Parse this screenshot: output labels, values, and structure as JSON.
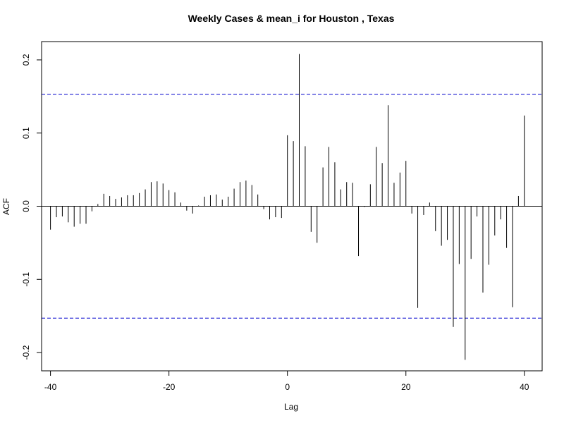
{
  "chart_data": {
    "type": "bar",
    "title": "Weekly Cases & mean_i for Houston , Texas",
    "xlabel": "Lag",
    "ylabel": "ACF",
    "xlim": [
      -41.5,
      43
    ],
    "ylim": [
      -0.225,
      0.225
    ],
    "x_ticks": [
      -40,
      -20,
      0,
      20,
      40
    ],
    "x_tick_labels": [
      "-40",
      "-20",
      "0",
      "20",
      "40"
    ],
    "y_ticks": [
      -0.2,
      -0.1,
      0.0,
      0.1,
      0.2
    ],
    "y_tick_labels": [
      "-0.2",
      "-0.1",
      "0.0",
      "0.1",
      "0.2"
    ],
    "confidence_bound": 0.153,
    "colors": {
      "bars": "#000000",
      "ci_lines": "#0000CD",
      "zero_line": "#000000"
    },
    "grid": false,
    "lags": [
      -40,
      -39,
      -38,
      -37,
      -36,
      -35,
      -34,
      -33,
      -32,
      -31,
      -30,
      -29,
      -28,
      -27,
      -26,
      -25,
      -24,
      -23,
      -22,
      -21,
      -20,
      -19,
      -18,
      -17,
      -16,
      -15,
      -14,
      -13,
      -12,
      -11,
      -10,
      -9,
      -8,
      -7,
      -6,
      -5,
      -4,
      -3,
      -2,
      -1,
      0,
      1,
      2,
      3,
      4,
      5,
      6,
      7,
      8,
      9,
      10,
      11,
      12,
      13,
      14,
      15,
      16,
      17,
      18,
      19,
      20,
      21,
      22,
      23,
      24,
      25,
      26,
      27,
      28,
      29,
      30,
      31,
      32,
      33,
      34,
      35,
      36,
      37,
      38,
      39,
      40
    ],
    "values": [
      -0.032,
      -0.015,
      -0.014,
      -0.022,
      -0.028,
      -0.024,
      -0.024,
      -0.007,
      0.003,
      0.017,
      0.014,
      0.01,
      0.012,
      0.015,
      0.015,
      0.018,
      0.023,
      0.033,
      0.034,
      0.031,
      0.022,
      0.019,
      0.005,
      -0.006,
      -0.01,
      0.001,
      0.013,
      0.015,
      0.016,
      0.009,
      0.013,
      0.024,
      0.033,
      0.035,
      0.029,
      0.016,
      -0.004,
      -0.018,
      -0.015,
      -0.016,
      0.097,
      0.089,
      0.208,
      0.082,
      -0.035,
      -0.05,
      0.053,
      0.081,
      0.06,
      0.023,
      0.033,
      0.032,
      -0.068,
      -0.001,
      0.03,
      0.081,
      0.059,
      0.138,
      0.032,
      0.046,
      0.062,
      -0.01,
      -0.139,
      -0.012,
      0.005,
      -0.034,
      -0.054,
      -0.046,
      -0.165,
      -0.079,
      -0.21,
      -0.072,
      -0.014,
      -0.118,
      -0.08,
      -0.04,
      -0.018,
      -0.057,
      -0.138,
      0.014,
      0.124
    ]
  }
}
